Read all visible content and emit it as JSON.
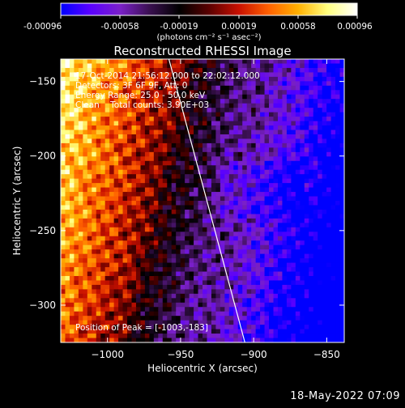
{
  "colorbar": {
    "ticks": [
      "-0.00096",
      "-0.00058",
      "-0.00019",
      "0.00019",
      "0.00058",
      "0.00096"
    ],
    "min": -0.00096,
    "max": 0.00096,
    "colors": [
      "#0000ff",
      "#5a00ff",
      "#7a20c8",
      "#3a1050",
      "#000000",
      "#5a0000",
      "#c81000",
      "#ff6000",
      "#ffb000",
      "#ffff80",
      "#ffffff"
    ]
  },
  "chart_data": {
    "type": "heatmap",
    "title": "Reconstructed RHESSI Image",
    "units": "(photons cm⁻² s⁻¹ asec⁻²)",
    "xlabel": "Heliocentric X (arcsec)",
    "ylabel": "Heliocentric Y (arcsec)",
    "xlim": [
      -1032,
      -838
    ],
    "ylim": [
      -325,
      -135
    ],
    "xticks": [
      -1000,
      -950,
      -900,
      -850
    ],
    "yticks": [
      -150,
      -200,
      -250,
      -300
    ],
    "xtick_labels": [
      "−1000",
      "−950",
      "−900",
      "−850"
    ],
    "ytick_labels": [
      "−150",
      "−200",
      "−250",
      "−300"
    ],
    "limb_line": [
      [
        -958,
        -135
      ],
      [
        -906,
        -325
      ]
    ],
    "peak": [
      -1003,
      -183
    ],
    "value_range": [
      -0.00096,
      0.00096
    ],
    "annotations": [
      "17-Oct-2014 21:56:12.000 to 22:02:12.000",
      "Detectors: 3F 6F 9F, Att: 0",
      "Energy Range: 25.0 - 50.0 keV",
      "Clean    Total counts: 3.90E+03"
    ],
    "peak_label": "Position of Peak = [-1003,-183]"
  },
  "timestamp": "18-May-2022 07:09"
}
